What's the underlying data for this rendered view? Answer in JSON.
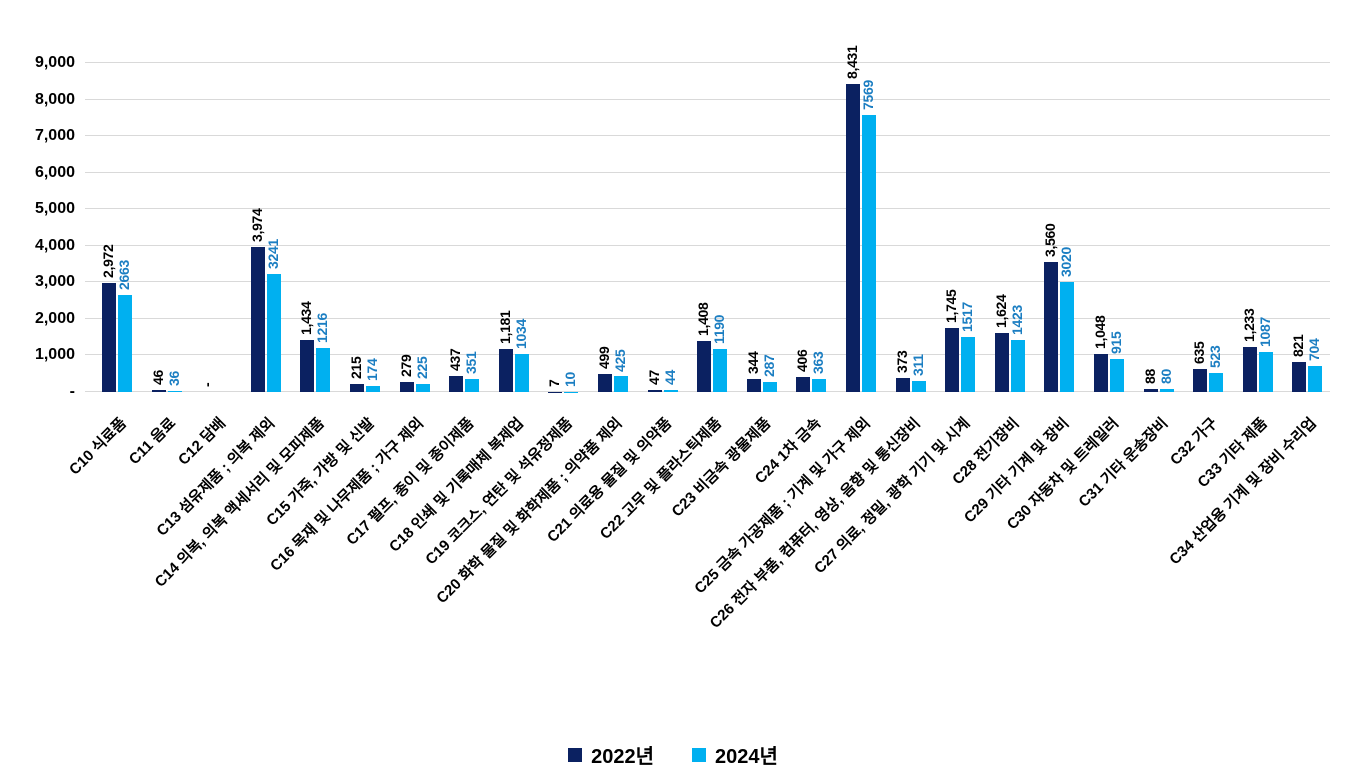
{
  "chart_data": {
    "type": "bar",
    "title": "",
    "xlabel": "",
    "ylabel": "",
    "ylim": [
      0,
      9000
    ],
    "ytick_step": 1000,
    "ytick_labels": [
      "-",
      "1,000",
      "2,000",
      "3,000",
      "4,000",
      "5,000",
      "6,000",
      "7,000",
      "8,000",
      "9,000"
    ],
    "grid": "horizontal",
    "gridline_color": "#d9d9d9",
    "legend_position": "bottom",
    "categories": [
      "C10 식료품",
      "C11 음료",
      "C12 담배",
      "C13 섬유제품 ; 의복 제외",
      "C14 의복, 의복 액세서리 및 모피제품",
      "C15 가죽, 가방 및 신발",
      "C16 목재 및 나무제품 ; 가구 제외",
      "C17 펄프, 종이 및 종이제품",
      "C18 인쇄 및 기록매체 복제업",
      "C19 코크스, 연탄 및 석유정제품",
      "C20 화학 물질 및 화학제품 ; 의약품 제외",
      "C21 의료용 물질 및 의약품",
      "C22 고무 및 플라스틱제품",
      "C23 비금속 광물제품",
      "C24 1차 금속",
      "C25 금속 가공제품 ; 기계 및 가구 제외",
      "C26 전자 부품, 컴퓨터, 영상, 음향 및 통신장비",
      "C27 의료, 정밀, 광학 기기 및 시계",
      "C28 전기장비",
      "C29 기타 기계 및 장비",
      "C30 자동차 및 트레일러",
      "C31 기타 운송장비",
      "C32 가구",
      "C33 기타 제품",
      "C34 산업용 기계 및 장비 수리업"
    ],
    "series": [
      {
        "name": "2022년",
        "key": "2022",
        "color": "#0b2161",
        "label_color": "#000000",
        "values": [
          2972,
          46,
          null,
          3974,
          1434,
          215,
          279,
          437,
          1181,
          7,
          499,
          47,
          1408,
          344,
          406,
          8431,
          373,
          1745,
          1624,
          3560,
          1048,
          88,
          635,
          1233,
          821
        ],
        "labels": [
          "2,972",
          "46",
          "-",
          "3,974",
          "1,434",
          "215",
          "279",
          "437",
          "1,181",
          "7",
          "499",
          "47",
          "1,408",
          "344",
          "406",
          "8,431",
          "373",
          "1,745",
          "1,624",
          "3,560",
          "1,048",
          "88",
          "635",
          "1,233",
          "821"
        ]
      },
      {
        "name": "2024년",
        "key": "2024",
        "color": "#00b0f0",
        "label_color": "#1b7ec2",
        "values": [
          2663,
          36,
          null,
          3241,
          1216,
          174,
          225,
          351,
          1034,
          10,
          425,
          44,
          1190,
          287,
          363,
          7569,
          311,
          1517,
          1423,
          3020,
          915,
          80,
          523,
          1087,
          704
        ],
        "labels": [
          "2663",
          "36",
          "",
          "3241",
          "1216",
          "174",
          "225",
          "351",
          "1034",
          "10",
          "425",
          "44",
          "1190",
          "287",
          "363",
          "7569",
          "311",
          "1517",
          "1423",
          "3020",
          "915",
          "80",
          "523",
          "1087",
          "704"
        ]
      }
    ]
  }
}
